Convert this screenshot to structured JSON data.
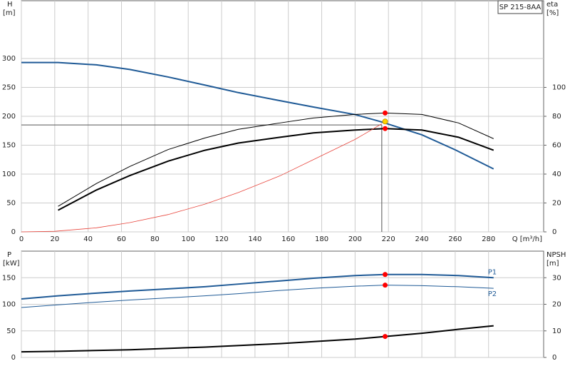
{
  "label": "SP 215-8AA",
  "chart_data": [
    {
      "type": "line",
      "ylabel": [
        "H",
        "[m]"
      ],
      "y2label": [
        "eta",
        "[%]"
      ],
      "xlabel": "Q [m³/h]",
      "xlim": [
        0,
        313
      ],
      "xticks": [
        0,
        20,
        40,
        60,
        80,
        100,
        120,
        140,
        160,
        180,
        200,
        220,
        240,
        260,
        280
      ],
      "ylim": [
        0,
        400
      ],
      "yticks": [
        0,
        50,
        100,
        150,
        200,
        250,
        300
      ],
      "y2lim": [
        0,
        160
      ],
      "y2ticks": [
        0,
        20,
        40,
        60,
        80,
        100
      ],
      "grid": true,
      "series": [
        {
          "color": "#1f5a96",
          "width": 2,
          "x": [
            0,
            22,
            45,
            65,
            88,
            110,
            130,
            155,
            175,
            200,
            215,
            240,
            260,
            283
          ],
          "values": [
            293,
            293,
            289,
            281,
            268,
            254,
            241,
            227,
            216,
            203,
            191,
            168,
            142,
            109
          ]
        },
        {
          "color": "#000000",
          "width": 2,
          "axis": "y2",
          "x": [
            22,
            45,
            65,
            88,
            110,
            130,
            155,
            175,
            200,
            218,
            240,
            262,
            283
          ],
          "values": [
            15,
            29,
            39,
            49,
            56.5,
            61.5,
            65.5,
            68.5,
            70.5,
            71.5,
            70.5,
            65.5,
            56.5
          ]
        },
        {
          "color": "#000000",
          "width": 1,
          "axis": "y2",
          "x": [
            22,
            45,
            65,
            88,
            110,
            130,
            155,
            175,
            200,
            218,
            240,
            262,
            283
          ],
          "values": [
            17.7,
            33.5,
            45.3,
            57,
            65,
            71,
            75.4,
            78.8,
            81.3,
            82.3,
            81.3,
            75.4,
            64.5
          ]
        },
        {
          "color": "#e8453c",
          "width": 0.8,
          "x": [
            0,
            20,
            45,
            65,
            88,
            110,
            130,
            155,
            175,
            200,
            216
          ],
          "values": [
            0,
            1,
            7,
            16,
            30,
            48,
            68,
            97,
            125,
            160,
            187
          ]
        }
      ],
      "duty_point": {
        "x": 216,
        "y": 185
      },
      "markers": [
        {
          "x": 218,
          "y": 82.3,
          "axis": "y2",
          "color": "#ff0000"
        },
        {
          "x": 218,
          "y": 191,
          "color": "#ffd700"
        },
        {
          "x": 218,
          "y": 71.5,
          "axis": "y2",
          "color": "#ff0000"
        }
      ]
    },
    {
      "type": "line",
      "ylabel": [
        "P",
        "[kW]"
      ],
      "y2label": [
        "NPSH",
        "[m]"
      ],
      "xlim": [
        0,
        313
      ],
      "xticks": [
        0,
        20,
        40,
        60,
        80,
        100,
        120,
        140,
        160,
        180,
        200,
        220,
        240,
        260,
        280
      ],
      "ylim": [
        0,
        200
      ],
      "yticks": [
        0,
        50,
        100,
        150
      ],
      "y2lim": [
        0,
        40
      ],
      "y2ticks": [
        0,
        10,
        20,
        30
      ],
      "grid": true,
      "series": [
        {
          "name": "P1",
          "color": "#1f5a96",
          "width": 2,
          "x": [
            0,
            22,
            45,
            65,
            88,
            110,
            130,
            155,
            175,
            200,
            218,
            240,
            262,
            283
          ],
          "values": [
            110,
            116,
            121,
            125,
            129,
            133,
            138,
            144,
            149,
            154,
            156,
            156,
            154,
            150
          ]
        },
        {
          "name": "P2",
          "color": "#1f5a96",
          "width": 1,
          "x": [
            0,
            22,
            45,
            65,
            88,
            110,
            130,
            155,
            175,
            200,
            218,
            240,
            262,
            283
          ],
          "values": [
            94,
            99,
            104,
            108,
            112,
            116,
            120,
            126,
            130,
            134,
            136,
            135,
            133,
            130
          ]
        },
        {
          "color": "#000000",
          "width": 2,
          "axis": "y2",
          "x": [
            0,
            22,
            65,
            110,
            155,
            200,
            218,
            240,
            262,
            283
          ],
          "values": [
            2.1,
            2.3,
            2.9,
            3.9,
            5.2,
            6.9,
            7.9,
            9.1,
            10.6,
            11.9
          ]
        }
      ],
      "markers": [
        {
          "x": 218,
          "y": 156,
          "color": "#ff0000"
        },
        {
          "x": 218,
          "y": 136,
          "color": "#ff0000"
        },
        {
          "x": 218,
          "y": 7.9,
          "axis": "y2",
          "color": "#ff0000"
        }
      ]
    }
  ]
}
